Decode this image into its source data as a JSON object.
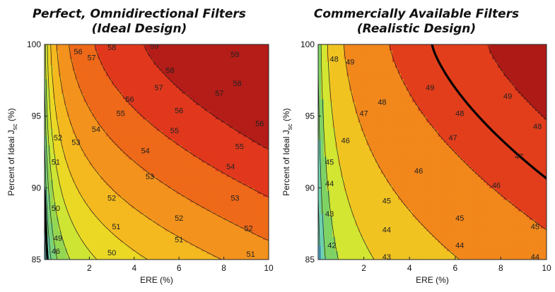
{
  "chart_data": [
    {
      "type": "contour",
      "title_line1": "Perfect, Omnidirectional Filters",
      "title_line2": "(Ideal Design)",
      "xlabel": "ERE (%)",
      "ylabel": "Percent of Ideal J",
      "ylabel_sub": "sc",
      "ylabel_unit": " (%)",
      "xlim": [
        0,
        10
      ],
      "ylim": [
        85,
        100
      ],
      "xticks": [
        "2",
        "4",
        "6",
        "8",
        "10"
      ],
      "yticks": [
        "85",
        "90",
        "95",
        "100"
      ],
      "levels": [
        46,
        47,
        48,
        49,
        50,
        51,
        52,
        53,
        54,
        55,
        56,
        57,
        58,
        59
      ],
      "highlight_level": 50,
      "contour_labels": [
        {
          "text": "46",
          "x": 0.5,
          "y": 85.6
        },
        {
          "text": "49",
          "x": 0.6,
          "y": 86.5
        },
        {
          "text": "50",
          "x": 0.5,
          "y": 88.6
        },
        {
          "text": "50",
          "x": 3.0,
          "y": 85.5
        },
        {
          "text": "51",
          "x": 0.5,
          "y": 91.8
        },
        {
          "text": "51",
          "x": 3.2,
          "y": 87.3
        },
        {
          "text": "51",
          "x": 6.0,
          "y": 86.4
        },
        {
          "text": "51",
          "x": 9.2,
          "y": 85.4
        },
        {
          "text": "52",
          "x": 0.6,
          "y": 93.5
        },
        {
          "text": "52",
          "x": 3.0,
          "y": 89.3
        },
        {
          "text": "52",
          "x": 6.0,
          "y": 87.9
        },
        {
          "text": "52",
          "x": 9.1,
          "y": 87.2
        },
        {
          "text": "53",
          "x": 1.4,
          "y": 93.2
        },
        {
          "text": "53",
          "x": 4.7,
          "y": 90.8
        },
        {
          "text": "53",
          "x": 8.5,
          "y": 89.3
        },
        {
          "text": "54",
          "x": 2.3,
          "y": 94.1
        },
        {
          "text": "54",
          "x": 4.5,
          "y": 92.6
        },
        {
          "text": "54",
          "x": 8.3,
          "y": 91.5
        },
        {
          "text": "55",
          "x": 3.4,
          "y": 95.2
        },
        {
          "text": "55",
          "x": 5.8,
          "y": 94.0
        },
        {
          "text": "55",
          "x": 8.7,
          "y": 92.9
        },
        {
          "text": "56",
          "x": 1.5,
          "y": 99.5
        },
        {
          "text": "56",
          "x": 3.8,
          "y": 96.2
        },
        {
          "text": "56",
          "x": 6.0,
          "y": 95.4
        },
        {
          "text": "56",
          "x": 9.6,
          "y": 94.5
        },
        {
          "text": "57",
          "x": 2.1,
          "y": 99.1
        },
        {
          "text": "57",
          "x": 5.1,
          "y": 97.0
        },
        {
          "text": "57",
          "x": 7.8,
          "y": 96.6
        },
        {
          "text": "58",
          "x": 3.0,
          "y": 99.8
        },
        {
          "text": "58",
          "x": 5.6,
          "y": 98.2
        },
        {
          "text": "58",
          "x": 8.6,
          "y": 97.3
        },
        {
          "text": "59",
          "x": 4.9,
          "y": 99.9
        },
        {
          "text": "59",
          "x": 8.5,
          "y": 99.3
        }
      ]
    },
    {
      "type": "contour",
      "title_line1": "Commercially Available Filters",
      "title_line2": "(Realistic Design)",
      "xlabel": "ERE (%)",
      "ylabel": "Percent of Ideal J",
      "ylabel_sub": "sc",
      "ylabel_unit": " (%)",
      "xlim": [
        0,
        10
      ],
      "ylim": [
        85,
        100
      ],
      "xticks": [
        "2",
        "4",
        "6",
        "8",
        "10"
      ],
      "yticks": [
        "85",
        "90",
        "95",
        "100"
      ],
      "levels": [
        42,
        43,
        44,
        45,
        46,
        47,
        48,
        49,
        50
      ],
      "highlight_level": 49.5,
      "contour_labels": [
        {
          "text": "42",
          "x": 0.6,
          "y": 86.0
        },
        {
          "text": "43",
          "x": 0.5,
          "y": 88.2
        },
        {
          "text": "43",
          "x": 3.0,
          "y": 85.2
        },
        {
          "text": "44",
          "x": 0.5,
          "y": 90.3
        },
        {
          "text": "44",
          "x": 3.0,
          "y": 87.1
        },
        {
          "text": "44",
          "x": 6.2,
          "y": 86.0
        },
        {
          "text": "44",
          "x": 9.5,
          "y": 85.2
        },
        {
          "text": "45",
          "x": 0.5,
          "y": 91.8
        },
        {
          "text": "45",
          "x": 3.0,
          "y": 89.1
        },
        {
          "text": "45",
          "x": 6.2,
          "y": 87.9
        },
        {
          "text": "45",
          "x": 9.5,
          "y": 87.3
        },
        {
          "text": "46",
          "x": 1.2,
          "y": 93.3
        },
        {
          "text": "46",
          "x": 4.4,
          "y": 91.2
        },
        {
          "text": "46",
          "x": 7.8,
          "y": 90.2
        },
        {
          "text": "47",
          "x": 2.0,
          "y": 95.2
        },
        {
          "text": "47",
          "x": 5.9,
          "y": 93.5
        },
        {
          "text": "47",
          "x": 8.8,
          "y": 92.2
        },
        {
          "text": "48",
          "x": 0.7,
          "y": 99.0
        },
        {
          "text": "48",
          "x": 2.8,
          "y": 96.0
        },
        {
          "text": "48",
          "x": 6.2,
          "y": 95.2
        },
        {
          "text": "48",
          "x": 9.6,
          "y": 94.3
        },
        {
          "text": "49",
          "x": 1.4,
          "y": 98.8
        },
        {
          "text": "49",
          "x": 4.9,
          "y": 97.0
        },
        {
          "text": "49",
          "x": 8.3,
          "y": 96.4
        }
      ]
    }
  ]
}
